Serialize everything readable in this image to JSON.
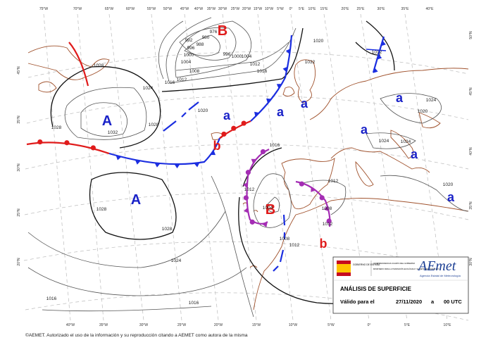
{
  "map": {
    "centers": [
      {
        "label": "B",
        "color": "#e01b1b"
      },
      {
        "label": "A",
        "color": "#1a22c8"
      },
      {
        "label": "A",
        "color": "#1a22c8"
      },
      {
        "label": "a",
        "color": "#1a22c8"
      },
      {
        "label": "a",
        "color": "#1a22c8"
      },
      {
        "label": "a",
        "color": "#1a22c8"
      },
      {
        "label": "a",
        "color": "#1a22c8"
      },
      {
        "label": "a",
        "color": "#1a22c8"
      },
      {
        "label": "a",
        "color": "#1a22c8"
      },
      {
        "label": "a",
        "color": "#1a22c8"
      },
      {
        "label": "B",
        "color": "#e01b1b"
      },
      {
        "label": "b",
        "color": "#e01b1b"
      },
      {
        "label": "b",
        "color": "#e01b1b"
      }
    ],
    "isobar_labels": [
      "1028",
      "1024",
      "1028",
      "1028",
      "1032",
      "1020",
      "1028",
      "1028",
      "1024",
      "1016",
      "1016",
      "1012",
      "1012",
      "1016",
      "1016",
      "1008",
      "1004",
      "1000",
      "996",
      "992",
      "988",
      "980",
      "976",
      "996",
      "1000",
      "1004",
      "1032",
      "1020",
      "1012",
      "1016",
      "1012",
      "1012",
      "1004",
      "1008",
      "1012",
      "1008",
      "1012",
      "1020",
      "1024",
      "1024",
      "1024",
      "1020"
    ],
    "longitude_labels_top": [
      "75°W",
      "70°W",
      "65°W",
      "60°W",
      "55°W",
      "50°W",
      "45°W",
      "40°W",
      "35°W",
      "30°W",
      "25°W",
      "20°W",
      "15°W",
      "10°W",
      "5°W",
      "0°",
      "5°E",
      "10°E",
      "15°E",
      "20°E",
      "25°E",
      "30°E",
      "35°E",
      "40°E"
    ],
    "longitude_labels_bottom": [
      "40°W",
      "35°W",
      "30°W",
      "25°W",
      "20°W",
      "15°W",
      "10°W",
      "5°W",
      "0°",
      "5°E",
      "10°E"
    ],
    "latitude_labels_left": [
      "45°N",
      "35°N",
      "30°N",
      "25°N",
      "20°N"
    ],
    "latitude_labels_right": [
      "50°N",
      "45°N",
      "40°N",
      "35°N",
      "30°N"
    ]
  },
  "legend": {
    "government": "GOBIERNO DE ESPAÑA",
    "vicepresidency": "VICEPRESIDENCIA CUARTA DEL GOBIERNO",
    "ministry": "MINISTERIO PARA LA TRANSICIÓN ECOLÓGICA Y EL RETO DEMOGRÁFICO",
    "brand": "AEmet",
    "brand_sub": "Agencia Estatal de Meteorología",
    "title": "ANÁLISIS DE SUPERFICIE",
    "valid_label": "Válido para el",
    "date": "27/11/2020",
    "at": "a",
    "time": "00 UTC"
  },
  "footer": "©AEMET. Autorizado el uso de la información y su reproducción citando a AEMET como autora de la misma"
}
